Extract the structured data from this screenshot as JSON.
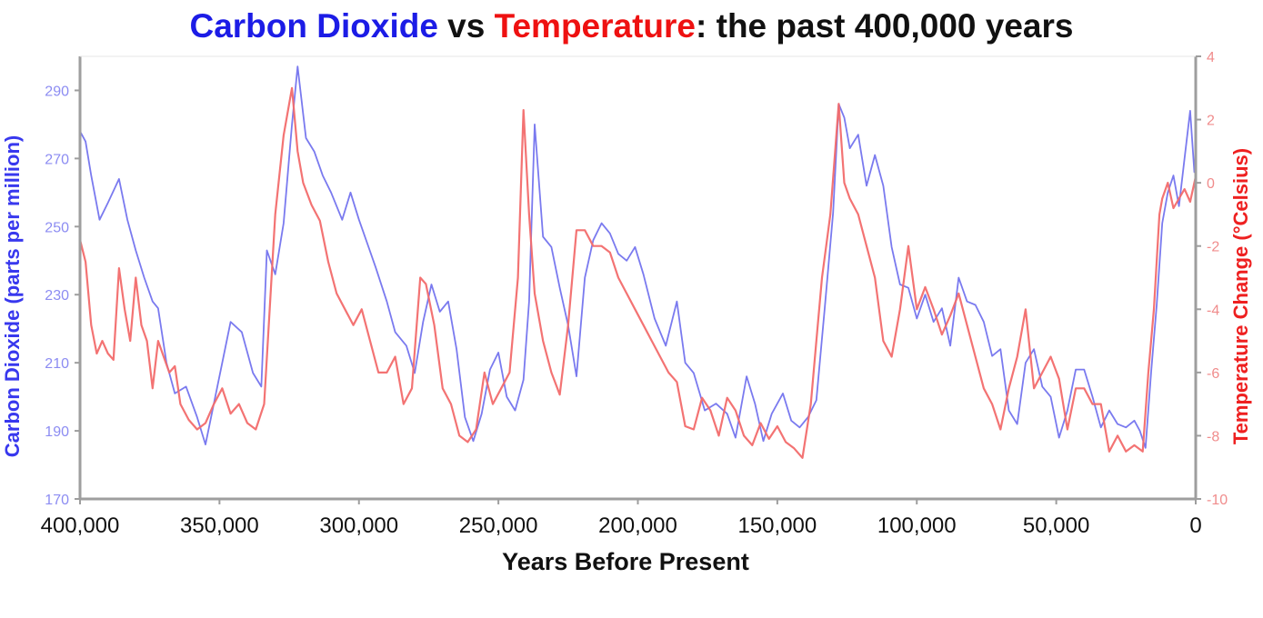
{
  "title": {
    "part1": "Carbon Dioxide",
    "part2": " vs ",
    "part3": "Temperature",
    "part4": ": the past 400,000 years"
  },
  "chart_data": {
    "type": "line",
    "title": "Carbon Dioxide vs Temperature: the past 400,000 years",
    "xlabel": "Years Before Present",
    "ylabel_left": "Carbon Dioxide (parts per million)",
    "ylabel_right": "Temperature Change (°Celsius)",
    "xlim": [
      400000,
      0
    ],
    "ylim_left": [
      170,
      300
    ],
    "ylim_right": [
      -10,
      4
    ],
    "x_ticks": [
      400000,
      350000,
      300000,
      250000,
      200000,
      150000,
      100000,
      50000,
      0
    ],
    "x_tick_labels": [
      "400,000",
      "350,000",
      "300,000",
      "250,000",
      "200,000",
      "150,000",
      "100,000",
      "50,000",
      "0"
    ],
    "y_left_ticks": [
      170,
      190,
      210,
      230,
      250,
      270,
      290
    ],
    "y_right_ticks": [
      -10,
      -8,
      -6,
      -4,
      -2,
      0,
      2,
      4
    ],
    "grid": false,
    "colors": {
      "co2": "#7373ee",
      "temperature": "#f26b6b",
      "co2_title": "#1c1ce6",
      "temperature_title": "#ee1111",
      "axis": "#9e9e9e"
    },
    "series": [
      {
        "name": "Carbon Dioxide",
        "axis": "left",
        "x": [
          400000,
          398000,
          396000,
          393000,
          390000,
          386000,
          383000,
          380000,
          377000,
          374000,
          372000,
          369000,
          366000,
          362000,
          358000,
          355000,
          352000,
          349000,
          346000,
          342000,
          338000,
          335000,
          333000,
          330000,
          327000,
          324000,
          322000,
          319000,
          316000,
          313000,
          310000,
          306000,
          303000,
          300000,
          297000,
          294000,
          290000,
          287000,
          283000,
          280000,
          277000,
          274000,
          271000,
          268000,
          265000,
          262000,
          259000,
          256000,
          253000,
          250000,
          247000,
          244000,
          241000,
          239000,
          237000,
          234000,
          231000,
          228000,
          225000,
          222000,
          219000,
          216000,
          213000,
          210000,
          207000,
          204000,
          201000,
          198000,
          194000,
          190000,
          186000,
          183000,
          180000,
          176000,
          172000,
          168000,
          165000,
          161000,
          158000,
          155000,
          152000,
          148000,
          145000,
          142000,
          139000,
          136000,
          133000,
          130000,
          128000,
          126000,
          124000,
          121000,
          118000,
          115000,
          112000,
          109000,
          106000,
          103000,
          100000,
          97000,
          94000,
          91000,
          88000,
          85000,
          82000,
          79000,
          76000,
          73000,
          70000,
          67000,
          64000,
          61000,
          58000,
          55000,
          52000,
          49000,
          46000,
          43000,
          40000,
          37000,
          34000,
          31000,
          28000,
          25000,
          22000,
          20000,
          18000,
          16000,
          14000,
          12000,
          10000,
          8000,
          6000,
          4000,
          2000,
          500
        ],
        "y": [
          278,
          275,
          265,
          252,
          257,
          264,
          252,
          243,
          235,
          228,
          226,
          210,
          201,
          203,
          194,
          186,
          198,
          210,
          222,
          219,
          207,
          203,
          243,
          236,
          251,
          280,
          297,
          276,
          272,
          265,
          260,
          252,
          260,
          252,
          245,
          238,
          228,
          219,
          215,
          207,
          222,
          233,
          225,
          228,
          214,
          194,
          187,
          195,
          208,
          213,
          200,
          196,
          205,
          228,
          280,
          247,
          244,
          232,
          221,
          206,
          235,
          246,
          251,
          248,
          242,
          240,
          244,
          236,
          223,
          215,
          228,
          210,
          207,
          196,
          198,
          195,
          188,
          206,
          198,
          187,
          195,
          201,
          193,
          191,
          194,
          199,
          226,
          254,
          286,
          282,
          273,
          277,
          262,
          271,
          262,
          244,
          233,
          232,
          223,
          230,
          222,
          226,
          215,
          235,
          228,
          227,
          222,
          212,
          214,
          196,
          192,
          210,
          214,
          203,
          200,
          188,
          196,
          208,
          208,
          200,
          191,
          196,
          192,
          191,
          193,
          190,
          185,
          207,
          227,
          251,
          260,
          265,
          256,
          270,
          284,
          266
        ]
      },
      {
        "name": "Temperature",
        "axis": "right",
        "x": [
          400000,
          398000,
          396000,
          394000,
          392000,
          390000,
          388000,
          386000,
          384000,
          382000,
          380000,
          378000,
          376000,
          374000,
          372000,
          370000,
          368000,
          366000,
          364000,
          361000,
          358000,
          355000,
          352000,
          349000,
          346000,
          343000,
          340000,
          337000,
          334000,
          332000,
          330000,
          327000,
          324000,
          322000,
          320000,
          317000,
          314000,
          311000,
          308000,
          305000,
          302000,
          299000,
          296000,
          293000,
          290000,
          287000,
          284000,
          281000,
          278000,
          276000,
          273000,
          270000,
          267000,
          264000,
          261000,
          258000,
          255000,
          252000,
          249000,
          246000,
          243000,
          241000,
          239000,
          237000,
          234000,
          231000,
          228000,
          225000,
          222000,
          219000,
          216000,
          213000,
          210000,
          207000,
          204000,
          201000,
          198000,
          195000,
          192000,
          189000,
          186000,
          183000,
          180000,
          177000,
          174000,
          171000,
          168000,
          165000,
          162000,
          159000,
          156000,
          153000,
          150000,
          147000,
          144000,
          141000,
          138000,
          136000,
          134000,
          131000,
          128000,
          126000,
          124000,
          121000,
          118000,
          115000,
          112000,
          109000,
          106000,
          103000,
          100000,
          97000,
          94000,
          91000,
          88000,
          85000,
          82000,
          79000,
          76000,
          73000,
          70000,
          67000,
          64000,
          61000,
          58000,
          55000,
          52000,
          49000,
          46000,
          43000,
          40000,
          37000,
          34000,
          31000,
          28000,
          25000,
          22000,
          19000,
          17000,
          15000,
          13000,
          12000,
          10000,
          8000,
          6000,
          4000,
          2000,
          0
        ],
        "y": [
          -1.8,
          -2.5,
          -4.5,
          -5.4,
          -5.0,
          -5.4,
          -5.6,
          -2.7,
          -4.0,
          -5.0,
          -3.0,
          -4.5,
          -5.0,
          -6.5,
          -5.0,
          -5.5,
          -6.0,
          -5.8,
          -7.0,
          -7.5,
          -7.8,
          -7.6,
          -7.0,
          -6.5,
          -7.3,
          -7.0,
          -7.6,
          -7.8,
          -7.0,
          -4.0,
          -1.0,
          1.5,
          3.0,
          1.0,
          0.0,
          -0.7,
          -1.2,
          -2.5,
          -3.5,
          -4.0,
          -4.5,
          -4.0,
          -5.0,
          -6.0,
          -6.0,
          -5.5,
          -7.0,
          -6.5,
          -3.0,
          -3.2,
          -4.5,
          -6.5,
          -7.0,
          -8.0,
          -8.2,
          -7.8,
          -6.0,
          -7.0,
          -6.5,
          -6.0,
          -3.0,
          2.3,
          -1.0,
          -3.5,
          -5.0,
          -6.0,
          -6.7,
          -4.5,
          -1.5,
          -1.5,
          -2.0,
          -2.0,
          -2.2,
          -3.0,
          -3.5,
          -4.0,
          -4.5,
          -5.0,
          -5.5,
          -6.0,
          -6.3,
          -7.7,
          -7.8,
          -6.8,
          -7.2,
          -8.0,
          -6.8,
          -7.2,
          -8.0,
          -8.3,
          -7.6,
          -8.1,
          -7.7,
          -8.2,
          -8.4,
          -8.7,
          -7.0,
          -5.0,
          -3.0,
          -1.0,
          2.5,
          0.0,
          -0.5,
          -1.0,
          -2.0,
          -3.0,
          -5.0,
          -5.5,
          -4.0,
          -2.0,
          -4.0,
          -3.3,
          -4.0,
          -4.8,
          -4.2,
          -3.5,
          -4.5,
          -5.5,
          -6.5,
          -7.0,
          -7.8,
          -6.5,
          -5.5,
          -4.0,
          -6.5,
          -6.0,
          -5.5,
          -6.2,
          -7.8,
          -6.5,
          -6.5,
          -7.0,
          -7.0,
          -8.5,
          -8.0,
          -8.5,
          -8.3,
          -8.5,
          -6.0,
          -4.0,
          -1.0,
          -0.5,
          0.0,
          -0.8,
          -0.5,
          -0.2,
          -0.6,
          0.2
        ]
      }
    ]
  }
}
